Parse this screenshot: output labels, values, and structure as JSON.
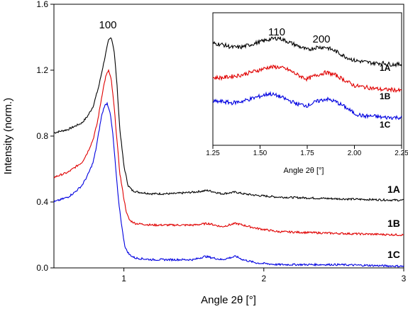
{
  "chart_data": [
    {
      "type": "line",
      "title": "",
      "xlabel": "Angle 2θ [°]",
      "ylabel": "Intensity (norm.)",
      "xlim": [
        0.5,
        3.0
      ],
      "ylim": [
        0.0,
        1.6
      ],
      "xticks": [
        1,
        2,
        3
      ],
      "xtick_labels": [
        "1",
        "2",
        "3"
      ],
      "yticks": [
        0.0,
        0.4,
        0.8,
        1.2,
        1.6
      ],
      "ytick_labels": [
        "0.0",
        "0.4",
        "0.8",
        "1.2",
        "1.6"
      ],
      "grid": false,
      "annotations": [
        {
          "text": "100",
          "x": 0.91,
          "y": 1.44
        }
      ],
      "series": [
        {
          "name": "1A",
          "color": "#000000",
          "x": [
            0.5,
            0.6,
            0.65,
            0.7,
            0.74,
            0.78,
            0.82,
            0.85,
            0.87,
            0.89,
            0.91,
            0.93,
            0.95,
            0.97,
            1.0,
            1.03,
            1.06,
            1.1,
            1.2,
            1.35,
            1.5,
            1.6,
            1.7,
            1.8,
            1.85,
            1.95,
            2.1,
            2.5,
            3.0
          ],
          "values": [
            0.82,
            0.84,
            0.86,
            0.88,
            0.92,
            0.98,
            1.1,
            1.22,
            1.3,
            1.38,
            1.4,
            1.32,
            1.12,
            0.85,
            0.62,
            0.5,
            0.47,
            0.46,
            0.45,
            0.45,
            0.46,
            0.47,
            0.45,
            0.46,
            0.45,
            0.44,
            0.43,
            0.42,
            0.41
          ]
        },
        {
          "name": "1B",
          "color": "#e00000",
          "x": [
            0.5,
            0.6,
            0.65,
            0.7,
            0.74,
            0.78,
            0.81,
            0.83,
            0.85,
            0.87,
            0.89,
            0.91,
            0.93,
            0.95,
            0.97,
            1.0,
            1.02,
            1.04,
            1.08,
            1.2,
            1.35,
            1.5,
            1.6,
            1.7,
            1.8,
            1.85,
            1.95,
            2.1,
            2.5,
            3.0
          ],
          "values": [
            0.55,
            0.58,
            0.61,
            0.64,
            0.7,
            0.78,
            0.88,
            0.98,
            1.08,
            1.16,
            1.2,
            1.14,
            0.98,
            0.78,
            0.58,
            0.42,
            0.33,
            0.29,
            0.27,
            0.26,
            0.26,
            0.26,
            0.27,
            0.25,
            0.27,
            0.26,
            0.24,
            0.22,
            0.21,
            0.2
          ]
        },
        {
          "name": "1C",
          "color": "#0000e0",
          "x": [
            0.5,
            0.6,
            0.65,
            0.7,
            0.74,
            0.78,
            0.8,
            0.82,
            0.84,
            0.86,
            0.88,
            0.9,
            0.92,
            0.94,
            0.96,
            0.99,
            1.01,
            1.04,
            1.08,
            1.2,
            1.35,
            1.5,
            1.58,
            1.7,
            1.8,
            1.85,
            1.95,
            2.1,
            2.5,
            3.0
          ],
          "values": [
            0.4,
            0.43,
            0.46,
            0.5,
            0.56,
            0.64,
            0.72,
            0.82,
            0.92,
            0.98,
            1.0,
            0.95,
            0.82,
            0.62,
            0.42,
            0.22,
            0.12,
            0.08,
            0.06,
            0.05,
            0.05,
            0.05,
            0.07,
            0.05,
            0.07,
            0.05,
            0.03,
            0.02,
            0.02,
            0.01
          ]
        }
      ]
    },
    {
      "type": "line",
      "title": "",
      "xlabel": "Angle 2θ [°]",
      "ylabel": "",
      "xlim": [
        1.25,
        2.25
      ],
      "xticks": [
        1.25,
        1.5,
        1.75,
        2.0,
        2.25
      ],
      "xtick_labels": [
        "1.25",
        "1.50",
        "1.75",
        "2.00",
        "2.25"
      ],
      "ylim": [
        0.0,
        1.0
      ],
      "grid": false,
      "annotations": [
        {
          "text": "110",
          "x": 1.57,
          "y": 0.96
        },
        {
          "text": "200",
          "x": 1.84,
          "y": 0.89
        }
      ],
      "series": [
        {
          "name": "1A",
          "color": "#000000",
          "x": [
            1.25,
            1.3,
            1.35,
            1.4,
            1.45,
            1.5,
            1.55,
            1.6,
            1.65,
            1.7,
            1.75,
            1.8,
            1.85,
            1.9,
            1.95,
            2.0,
            2.05,
            2.1,
            2.15,
            2.2,
            2.25
          ],
          "values": [
            0.77,
            0.76,
            0.74,
            0.74,
            0.76,
            0.78,
            0.8,
            0.81,
            0.78,
            0.75,
            0.72,
            0.74,
            0.74,
            0.71,
            0.67,
            0.64,
            0.63,
            0.62,
            0.62,
            0.61,
            0.61
          ]
        },
        {
          "name": "1B",
          "color": "#e00000",
          "x": [
            1.25,
            1.3,
            1.35,
            1.4,
            1.45,
            1.5,
            1.55,
            1.6,
            1.65,
            1.7,
            1.75,
            1.8,
            1.85,
            1.9,
            1.95,
            2.0,
            2.05,
            2.1,
            2.15,
            2.2,
            2.25
          ],
          "values": [
            0.51,
            0.51,
            0.52,
            0.53,
            0.55,
            0.57,
            0.59,
            0.59,
            0.57,
            0.53,
            0.5,
            0.53,
            0.55,
            0.53,
            0.49,
            0.45,
            0.44,
            0.43,
            0.42,
            0.42,
            0.41
          ]
        },
        {
          "name": "1C",
          "color": "#0000e0",
          "x": [
            1.25,
            1.3,
            1.35,
            1.4,
            1.45,
            1.5,
            1.55,
            1.6,
            1.65,
            1.7,
            1.75,
            1.8,
            1.85,
            1.9,
            1.95,
            2.0,
            2.05,
            2.1,
            2.15,
            2.2,
            2.25
          ],
          "values": [
            0.33,
            0.33,
            0.32,
            0.33,
            0.35,
            0.37,
            0.39,
            0.37,
            0.34,
            0.31,
            0.3,
            0.33,
            0.35,
            0.33,
            0.29,
            0.24,
            0.22,
            0.22,
            0.21,
            0.21,
            0.21
          ]
        }
      ]
    }
  ]
}
